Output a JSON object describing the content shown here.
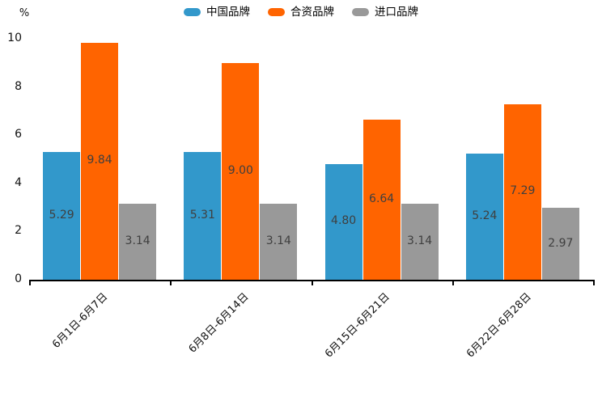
{
  "chart_data": {
    "type": "bar",
    "title": "",
    "ylabel": "%",
    "categories": [
      "6月1日-6月7日",
      "6月8日-6月14日",
      "6月15日-6月21日",
      "6月22日-6月28日"
    ],
    "series": [
      {
        "name": "中国品牌",
        "color": "#3298CB",
        "values": [
          5.29,
          5.31,
          4.8,
          5.24
        ]
      },
      {
        "name": "合资品牌",
        "color": "#FF6400",
        "values": [
          9.84,
          9.0,
          6.64,
          7.29
        ]
      },
      {
        "name": "进口品牌",
        "color": "#999999",
        "values": [
          3.14,
          3.14,
          3.14,
          2.97
        ]
      }
    ],
    "ylim": [
      0,
      10
    ],
    "yticks": [
      0,
      2,
      4,
      6,
      8,
      10
    ],
    "grid": false,
    "legend_position": "top-center",
    "value_label_decimals": 2,
    "value_label_position": "inside-center",
    "x_label_rotation_deg": 45
  },
  "colors": {
    "background": "#ffffff",
    "axis_line": "#000000",
    "tick_label": "#111111",
    "value_label": "#3f3f3f"
  }
}
